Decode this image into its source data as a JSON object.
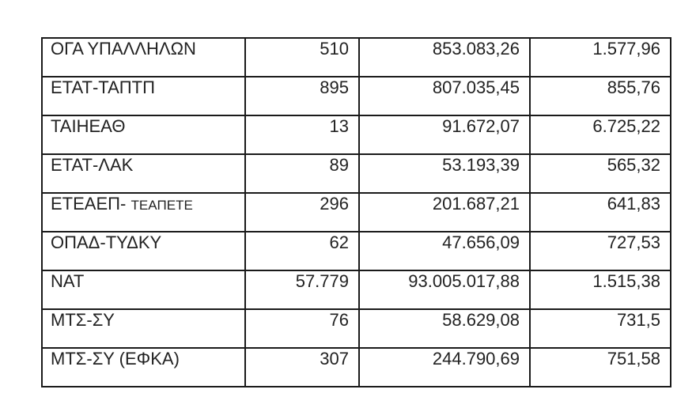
{
  "table": {
    "rows": [
      [
        "ΟΓΑ ΥΠΑΛΛΗΛΩΝ",
        "510",
        "853.083,26",
        "1.577,96"
      ],
      [
        "ΕΤΑΤ-ΤΑΠΤΠ",
        "895",
        "807.035,45",
        "855,76"
      ],
      [
        "ΤΑΙΗΕΑΘ",
        "13",
        "91.672,07",
        "6.725,22"
      ],
      [
        "ΕΤΑΤ-ΛΑΚ",
        "89",
        "53.193,39",
        "565,32"
      ],
      [
        "ΕΤΕΑΕΠ- ΤΕΑΠΕΤΕ",
        "296",
        "201.687,21",
        "641,83"
      ],
      [
        "ΟΠΑΔ-ΤΥΔΚΥ",
        "62",
        "47.656,09",
        "727,53"
      ],
      [
        "ΝΑΤ",
        "57.779",
        "93.005.017,88",
        "1.515,38"
      ],
      [
        "ΜΤΣ-ΣΥ",
        "76",
        "58.629,08",
        "731,5"
      ],
      [
        "ΜΤΣ-ΣΥ (ΕΦΚΑ)",
        "307",
        "244.790,69",
        "751,58"
      ]
    ]
  }
}
